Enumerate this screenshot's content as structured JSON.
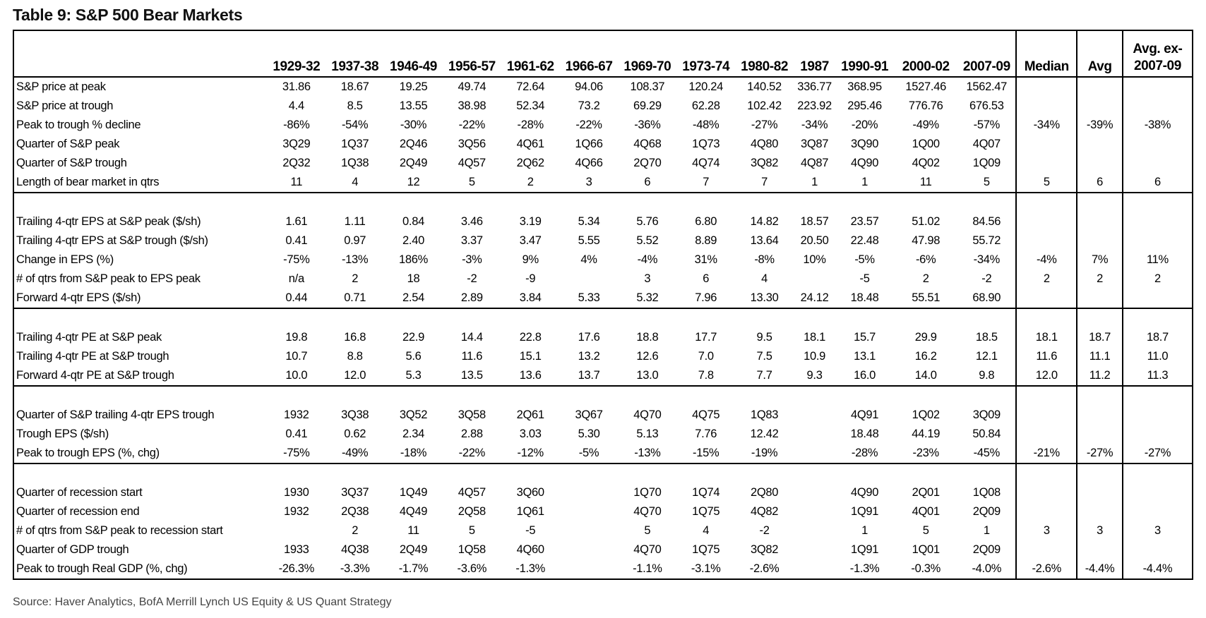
{
  "title": "Table 9: S&P 500 Bear Markets",
  "source": "Source: Haver Analytics, BofA Merrill Lynch US Equity & US Quant Strategy",
  "columns": [
    "1929-32",
    "1937-38",
    "1946-49",
    "1956-57",
    "1961-62",
    "1966-67",
    "1969-70",
    "1973-74",
    "1980-82",
    "1987",
    "1990-91",
    "2000-02",
    "2007-09",
    "Median",
    "Avg",
    "Avg. ex-2007-09"
  ],
  "sections": [
    {
      "rows": [
        {
          "label": "S&P price at peak",
          "values": [
            "31.86",
            "18.67",
            "19.25",
            "49.74",
            "72.64",
            "94.06",
            "108.37",
            "120.24",
            "140.52",
            "336.77",
            "368.95",
            "1527.46",
            "1562.47",
            "",
            "",
            ""
          ]
        },
        {
          "label": "S&P price at trough",
          "values": [
            "4.4",
            "8.5",
            "13.55",
            "38.98",
            "52.34",
            "73.2",
            "69.29",
            "62.28",
            "102.42",
            "223.92",
            "295.46",
            "776.76",
            "676.53",
            "",
            "",
            ""
          ]
        },
        {
          "label": "Peak to trough % decline",
          "values": [
            "-86%",
            "-54%",
            "-30%",
            "-22%",
            "-28%",
            "-22%",
            "-36%",
            "-48%",
            "-27%",
            "-34%",
            "-20%",
            "-49%",
            "-57%",
            "-34%",
            "-39%",
            "-38%"
          ]
        },
        {
          "label": "Quarter of S&P peak",
          "values": [
            "3Q29",
            "1Q37",
            "2Q46",
            "3Q56",
            "4Q61",
            "1Q66",
            "4Q68",
            "1Q73",
            "4Q80",
            "3Q87",
            "3Q90",
            "1Q00",
            "4Q07",
            "",
            "",
            ""
          ]
        },
        {
          "label": "Quarter of S&P trough",
          "values": [
            "2Q32",
            "1Q38",
            "2Q49",
            "4Q57",
            "2Q62",
            "4Q66",
            "2Q70",
            "4Q74",
            "3Q82",
            "4Q87",
            "4Q90",
            "4Q02",
            "1Q09",
            "",
            "",
            ""
          ]
        },
        {
          "label": "Length of bear market in qtrs",
          "values": [
            "11",
            "4",
            "12",
            "5",
            "2",
            "3",
            "6",
            "7",
            "7",
            "1",
            "1",
            "11",
            "5",
            "5",
            "6",
            "6"
          ]
        }
      ]
    },
    {
      "rows": [
        {
          "label": "Trailing 4-qtr EPS at S&P peak ($/sh)",
          "values": [
            "1.61",
            "1.11",
            "0.84",
            "3.46",
            "3.19",
            "5.34",
            "5.76",
            "6.80",
            "14.82",
            "18.57",
            "23.57",
            "51.02",
            "84.56",
            "",
            "",
            ""
          ]
        },
        {
          "label": "Trailing 4-qtr EPS at S&P trough ($/sh)",
          "values": [
            "0.41",
            "0.97",
            "2.40",
            "3.37",
            "3.47",
            "5.55",
            "5.52",
            "8.89",
            "13.64",
            "20.50",
            "22.48",
            "47.98",
            "55.72",
            "",
            "",
            ""
          ]
        },
        {
          "label": "Change in EPS (%)",
          "values": [
            "-75%",
            "-13%",
            "186%",
            "-3%",
            "9%",
            "4%",
            "-4%",
            "31%",
            "-8%",
            "10%",
            "-5%",
            "-6%",
            "-34%",
            "-4%",
            "7%",
            "11%"
          ]
        },
        {
          "label": "# of qtrs from S&P peak to EPS peak",
          "values": [
            "n/a",
            "2",
            "18",
            "-2",
            "-9",
            "",
            "3",
            "6",
            "4",
            "",
            "-5",
            "2",
            "-2",
            "2",
            "2",
            "2"
          ]
        },
        {
          "label": "Forward 4-qtr EPS ($/sh)",
          "values": [
            "0.44",
            "0.71",
            "2.54",
            "2.89",
            "3.84",
            "5.33",
            "5.32",
            "7.96",
            "13.30",
            "24.12",
            "18.48",
            "55.51",
            "68.90",
            "",
            "",
            ""
          ]
        }
      ]
    },
    {
      "rows": [
        {
          "label": "Trailing 4-qtr PE at S&P peak",
          "values": [
            "19.8",
            "16.8",
            "22.9",
            "14.4",
            "22.8",
            "17.6",
            "18.8",
            "17.7",
            "9.5",
            "18.1",
            "15.7",
            "29.9",
            "18.5",
            "18.1",
            "18.7",
            "18.7"
          ]
        },
        {
          "label": "Trailing 4-qtr PE at S&P trough",
          "values": [
            "10.7",
            "8.8",
            "5.6",
            "11.6",
            "15.1",
            "13.2",
            "12.6",
            "7.0",
            "7.5",
            "10.9",
            "13.1",
            "16.2",
            "12.1",
            "11.6",
            "11.1",
            "11.0"
          ]
        },
        {
          "label": "Forward 4-qtr PE at S&P trough",
          "values": [
            "10.0",
            "12.0",
            "5.3",
            "13.5",
            "13.6",
            "13.7",
            "13.0",
            "7.8",
            "7.7",
            "9.3",
            "16.0",
            "14.0",
            "9.8",
            "12.0",
            "11.2",
            "11.3"
          ]
        }
      ]
    },
    {
      "rows": [
        {
          "label": "Quarter of S&P trailing 4-qtr EPS trough",
          "values": [
            "1932",
            "3Q38",
            "3Q52",
            "3Q58",
            "2Q61",
            "3Q67",
            "4Q70",
            "4Q75",
            "1Q83",
            "",
            "4Q91",
            "1Q02",
            "3Q09",
            "",
            "",
            ""
          ]
        },
        {
          "label": "Trough EPS ($/sh)",
          "values": [
            "0.41",
            "0.62",
            "2.34",
            "2.88",
            "3.03",
            "5.30",
            "5.13",
            "7.76",
            "12.42",
            "",
            "18.48",
            "44.19",
            "50.84",
            "",
            "",
            ""
          ]
        },
        {
          "label": "Peak to trough EPS (%, chg)",
          "values": [
            "-75%",
            "-49%",
            "-18%",
            "-22%",
            "-12%",
            "-5%",
            "-13%",
            "-15%",
            "-19%",
            "",
            "-28%",
            "-23%",
            "-45%",
            "-21%",
            "-27%",
            "-27%"
          ]
        }
      ]
    },
    {
      "rows": [
        {
          "label": "Quarter of recession start",
          "values": [
            "1930",
            "3Q37",
            "1Q49",
            "4Q57",
            "3Q60",
            "",
            "1Q70",
            "1Q74",
            "2Q80",
            "",
            "4Q90",
            "2Q01",
            "1Q08",
            "",
            "",
            ""
          ]
        },
        {
          "label": "Quarter of recession end",
          "values": [
            "1932",
            "2Q38",
            "4Q49",
            "2Q58",
            "1Q61",
            "",
            "4Q70",
            "1Q75",
            "4Q82",
            "",
            "1Q91",
            "4Q01",
            "2Q09",
            "",
            "",
            ""
          ]
        },
        {
          "label": "# of qtrs from S&P peak to recession start",
          "values": [
            "",
            "2",
            "11",
            "5",
            "-5",
            "",
            "5",
            "4",
            "-2",
            "",
            "1",
            "5",
            "1",
            "3",
            "3",
            "3"
          ]
        },
        {
          "label": "Quarter of GDP trough",
          "values": [
            "1933",
            "4Q38",
            "2Q49",
            "1Q58",
            "4Q60",
            "",
            "4Q70",
            "1Q75",
            "3Q82",
            "",
            "1Q91",
            "1Q01",
            "2Q09",
            "",
            "",
            ""
          ]
        },
        {
          "label": "Peak to trough Real GDP (%, chg)",
          "values": [
            "-26.3%",
            "-3.3%",
            "-1.7%",
            "-3.6%",
            "-1.3%",
            "",
            "-1.1%",
            "-3.1%",
            "-2.6%",
            "",
            "-1.3%",
            "-0.3%",
            "-4.0%",
            "-2.6%",
            "-4.4%",
            "-4.4%"
          ]
        }
      ]
    }
  ]
}
